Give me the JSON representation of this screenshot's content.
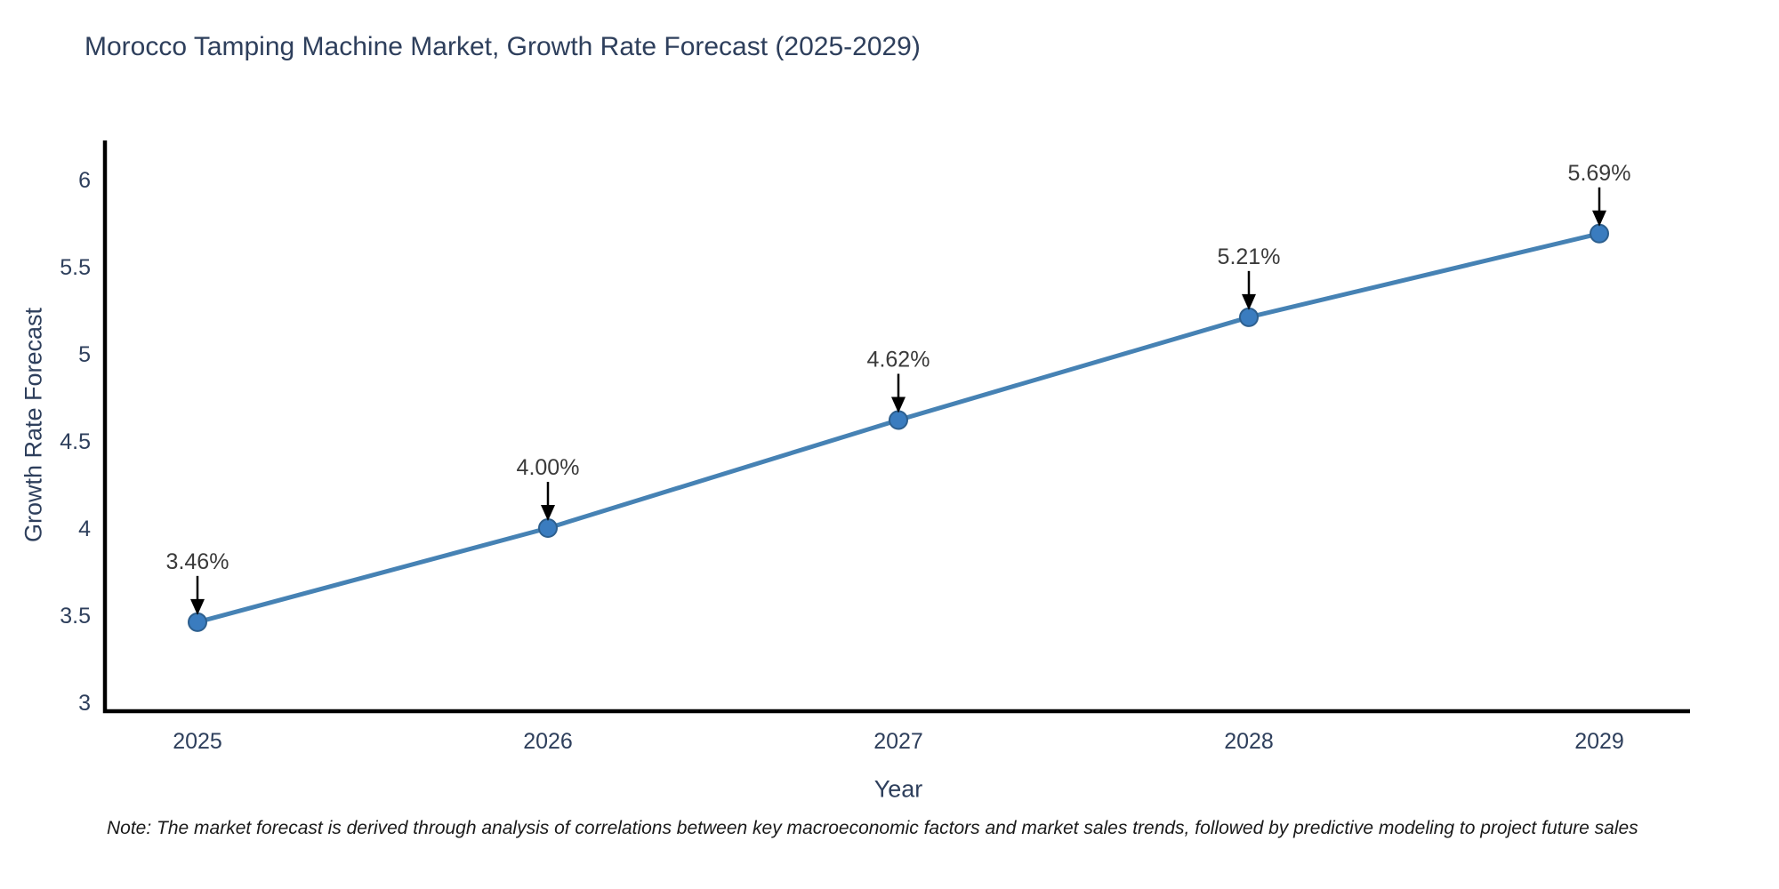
{
  "title": "Morocco Tamping Machine Market, Growth Rate Forecast (2025-2029)",
  "footnote": "Note: The market forecast is derived through analysis of correlations between key macroeconomic factors and market sales trends, followed by predictive modeling to project future sales",
  "chart_data": {
    "type": "line",
    "title": "Morocco Tamping Machine Market, Growth Rate Forecast (2025-2029)",
    "xlabel": "Year",
    "ylabel": "Growth Rate Forecast",
    "categories": [
      "2025",
      "2026",
      "2027",
      "2028",
      "2029"
    ],
    "series": [
      {
        "name": "Growth Rate Forecast",
        "values": [
          3.46,
          4.0,
          4.62,
          5.21,
          5.69
        ]
      }
    ],
    "point_labels": [
      "3.46%",
      "4.00%",
      "4.62%",
      "5.21%",
      "5.69%"
    ],
    "ylim": [
      3,
      6
    ],
    "yticks": [
      3,
      3.5,
      4,
      4.5,
      5,
      5.5,
      6
    ],
    "grid": false,
    "legend_position": "none",
    "annotation_style": "down-arrow-to-point",
    "colors": {
      "line": "#4682b4",
      "marker_fill": "#3a7cbf",
      "marker_edge": "#2d5f8e",
      "axis": "#000000",
      "axis_text": "#2e3f5c",
      "annotation_text": "#3a3a3a",
      "arrow": "#000000",
      "background": "#ffffff"
    }
  }
}
